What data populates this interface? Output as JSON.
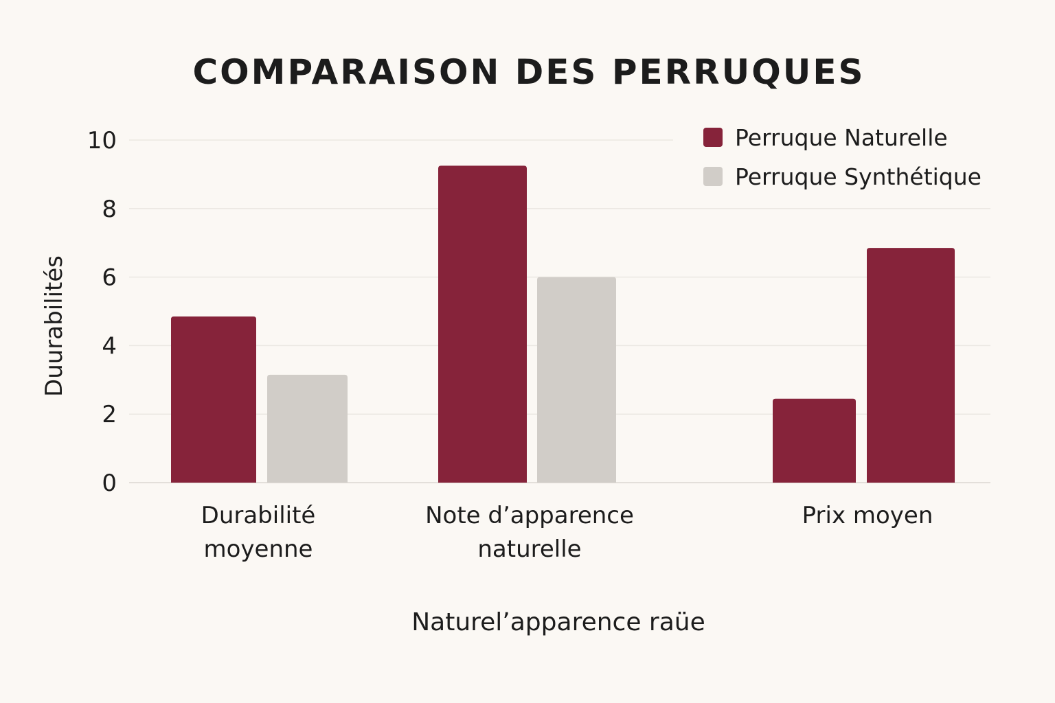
{
  "chart_data": {
    "type": "bar",
    "title": "COMPARAISON DES PERRUQUES",
    "ylabel": "Duurabilités",
    "xlabel": "Naturel’apparence raüe",
    "categories": [
      [
        "Durabilité",
        "moyenne"
      ],
      [
        "Note d’apparence",
        "naturelle"
      ],
      [
        "Prix moyen"
      ]
    ],
    "series": [
      {
        "name": "Perruque Naturelle",
        "color": "#86233a",
        "values": [
          4.85,
          9.25,
          2.45
        ]
      },
      {
        "name": "Perruque Synthétique",
        "color": "#d1cdc8",
        "values": [
          3.15,
          6.0,
          6.85
        ]
      }
    ],
    "bar_colors": [
      [
        "#86233a",
        "#d1cdc8"
      ],
      [
        "#86233a",
        "#d1cdc8"
      ],
      [
        "#86233a",
        "#86233a"
      ]
    ],
    "ylim": [
      0,
      10
    ],
    "yticks": [
      "0",
      "2",
      "4",
      "6",
      "8",
      "10"
    ],
    "grid": true,
    "legend_position": "top-right"
  }
}
